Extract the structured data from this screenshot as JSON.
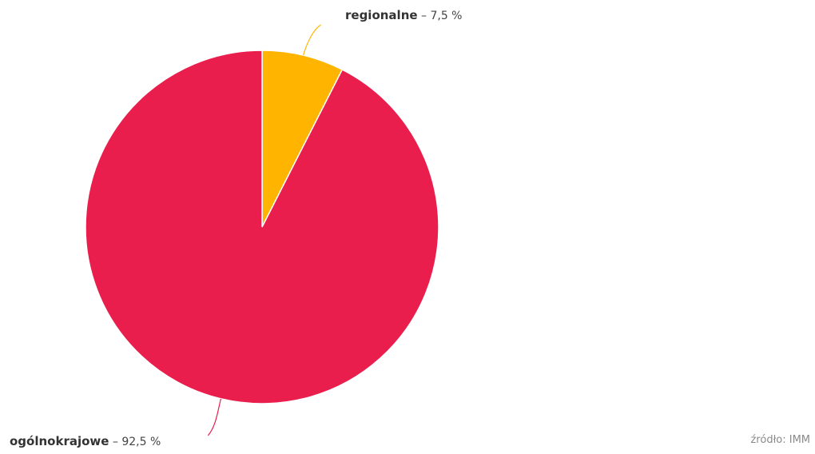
{
  "chart_data": {
    "type": "pie",
    "slices": [
      {
        "label": "regionalne",
        "value": 7.5,
        "value_text": "7,5 %",
        "color": "#FFB400"
      },
      {
        "label": "ogólnokrajowe",
        "value": 92.5,
        "value_text": "92,5 %",
        "color": "#E91E4C"
      }
    ],
    "start_angle_deg": 0,
    "direction": "clockwise",
    "separator": " – "
  },
  "source": "źródło: IMM"
}
